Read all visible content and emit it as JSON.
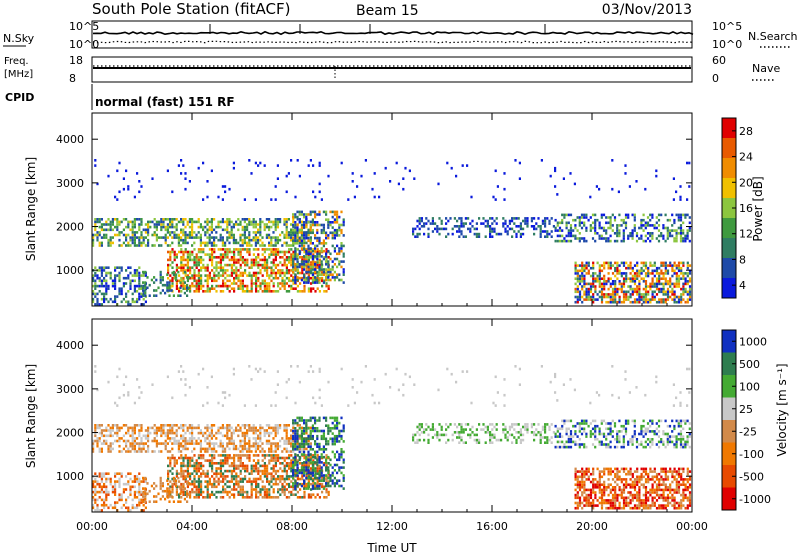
{
  "header": {
    "station": "South Pole Station (fitACF)",
    "beam": "Beam 15",
    "date": "03/Nov/2013",
    "cpid": "normal (fast) 151 RF"
  },
  "top_panels": {
    "nsky_label": "N.Sky",
    "nsearch_label": "N.Search",
    "freq_label_1": "Freq.",
    "freq_label_2": "[MHz]",
    "nave_label": "Nave",
    "cpid_label": "CPID",
    "noise_ticks": [
      "10^5",
      "10^0"
    ],
    "freq_ticks_left": [
      "18",
      "8"
    ],
    "nave_ticks_right": [
      "60",
      "0"
    ]
  },
  "colors": {
    "power": [
      "#0a1adc",
      "#1e4aa8",
      "#2f7d62",
      "#3f9a3f",
      "#8cc63f",
      "#f0c000",
      "#f08c00",
      "#e85a00",
      "#e00000"
    ],
    "velocity": [
      "#1030c0",
      "#2e7d4f",
      "#44aa33",
      "#c8c8c8",
      "#d28a4a",
      "#f07800",
      "#e84a00",
      "#e00000"
    ]
  },
  "chart_data": [
    {
      "type": "heatmap",
      "title": "Power",
      "xlabel": "",
      "ylabel": "Slant Range [km]",
      "x_ticks": [
        "00:00",
        "04:00",
        "08:00",
        "12:00",
        "16:00",
        "20:00",
        "00:00"
      ],
      "xlim_hours": [
        0,
        24
      ],
      "y_ticks": [
        1000,
        2000,
        3000,
        4000
      ],
      "ylim_km": [
        180,
        4600
      ],
      "colorbar_label": "Power [dB]",
      "colorbar_ticks": [
        "4",
        "8",
        "12",
        "16",
        "20",
        "24",
        "28"
      ],
      "grid": false
    },
    {
      "type": "heatmap",
      "title": "Velocity",
      "xlabel": "Time UT",
      "ylabel": "Slant Range [km]",
      "x_ticks": [
        "00:00",
        "04:00",
        "08:00",
        "12:00",
        "16:00",
        "20:00",
        "00:00"
      ],
      "xlim_hours": [
        0,
        24
      ],
      "y_ticks": [
        1000,
        2000,
        3000,
        4000
      ],
      "ylim_km": [
        180,
        4600
      ],
      "colorbar_label": "Velocity [m s⁻¹]",
      "colorbar_ticks": [
        "1000",
        "500",
        "100",
        "25",
        "-25",
        "-100",
        "-500",
        "-1000"
      ],
      "grid": false
    }
  ]
}
